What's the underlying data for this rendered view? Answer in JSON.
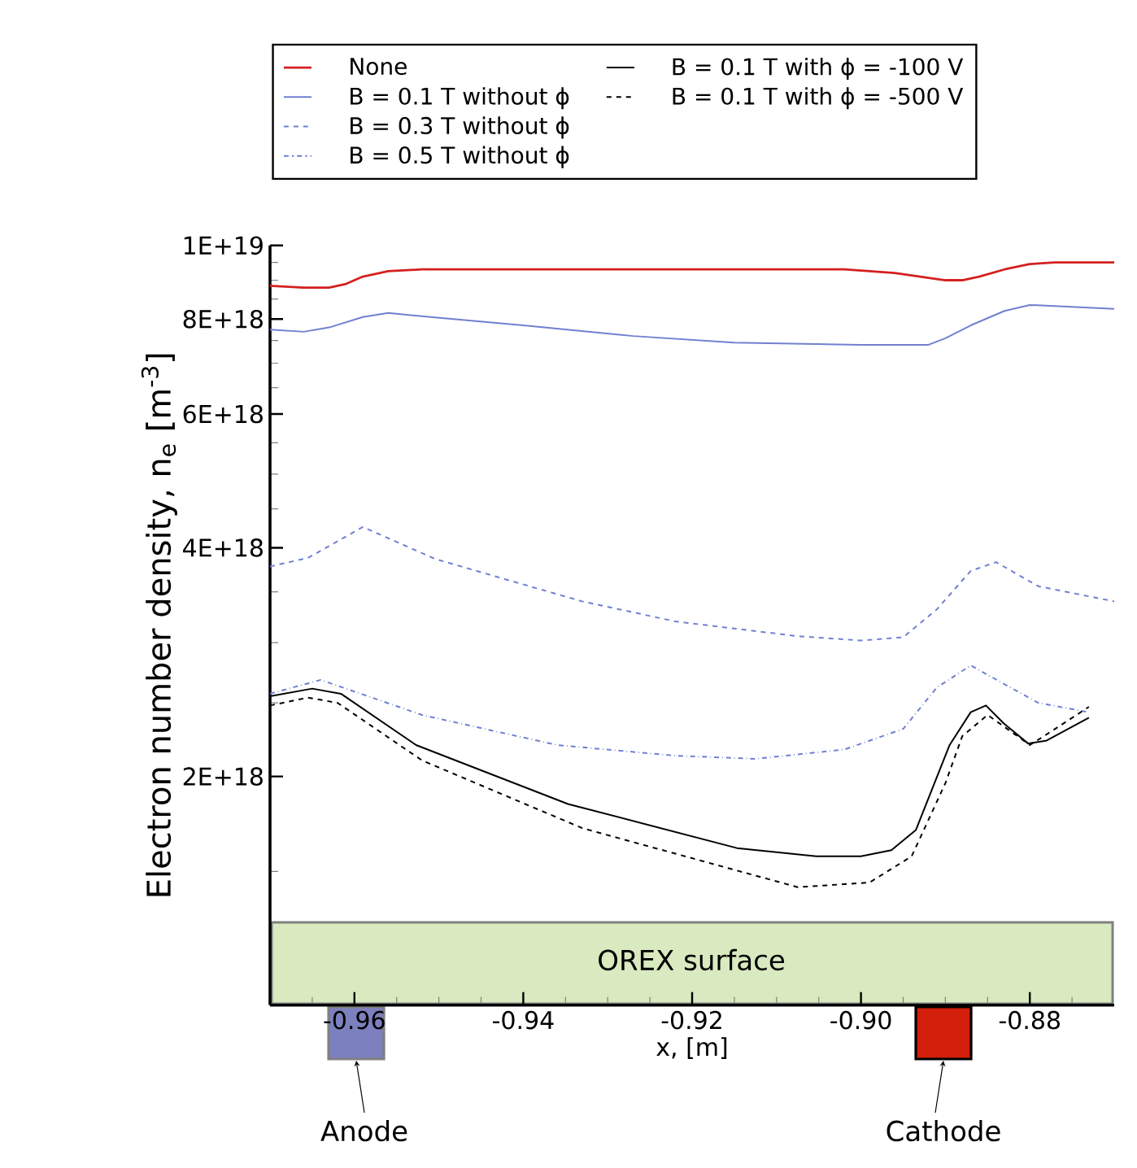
{
  "chart_data": {
    "type": "line",
    "xlabel": "x, [m]",
    "ylabel": "Electron number density, n$_{e}$ [m$^{-3}$]",
    "xlim": [
      -0.97,
      -0.87
    ],
    "xticks": [
      {
        "value": -0.965,
        "label": null
      },
      -0.96,
      {
        "value": -0.955,
        "label": null
      },
      {
        "value": -0.95,
        "label": null
      },
      {
        "value": -0.945,
        "label": null
      },
      -0.94,
      {
        "value": -0.935,
        "label": null
      },
      {
        "value": -0.93,
        "label": null
      },
      {
        "value": -0.925,
        "label": null
      },
      -0.92,
      {
        "value": -0.915,
        "label": null
      },
      {
        "value": -0.91,
        "label": null
      },
      {
        "value": -0.905,
        "label": null
      },
      {
        "value": -0.9,
        "label": "-0.90"
      },
      {
        "value": -0.895,
        "label": null
      },
      {
        "value": -0.89,
        "label": null
      },
      {
        "value": -0.885,
        "label": null
      },
      -0.88,
      {
        "value": -0.875,
        "label": null
      }
    ],
    "ylim": [
      1e+18,
      1e+19
    ],
    "log": "y",
    "yticks": [
      {
        "value": 1.5e+18,
        "label": null
      },
      {
        "value": 2e+18,
        "label": "2E+18"
      },
      {
        "value": 2.5e+18,
        "label": null
      },
      {
        "value": 3e+18,
        "label": null
      },
      {
        "value": 3.5e+18,
        "label": null
      },
      {
        "value": 4e+18,
        "label": "4E+18"
      },
      {
        "value": 4.5e+18,
        "label": null
      },
      {
        "value": 5e+18,
        "label": null
      },
      {
        "value": 5.5e+18,
        "label": null
      },
      {
        "value": 6e+18,
        "label": "6E+18"
      },
      {
        "value": 6.5e+18,
        "label": null
      },
      {
        "value": 7e+18,
        "label": null
      },
      {
        "value": 7.5e+18,
        "label": null
      },
      {
        "value": 8e+18,
        "label": "8E+18"
      },
      {
        "value": 8.5e+18,
        "label": null
      },
      {
        "value": 9e+18,
        "label": null
      },
      {
        "value": 9.5e+18,
        "label": null
      },
      {
        "value": 1e+19,
        "label": "1E+19"
      }
    ],
    "grid": false,
    "legend": "top",
    "marker": "none",
    "annotations": [
      "OREX surface",
      "Anode",
      "Cathode"
    ],
    "series": [
      {
        "name": "None",
        "color": "#d42020",
        "line_style": "solid",
        "x": [
          -0.97,
          -0.966,
          -0.963,
          -0.961,
          -0.959,
          -0.956,
          -0.952,
          -0.943,
          -0.902,
          -0.896,
          -0.893,
          -0.89,
          -0.888,
          -0.886,
          -0.883,
          -0.88,
          -0.877,
          -0.87
        ],
        "values": [
          8.85e+18,
          8.8e+18,
          8.8e+18,
          8.9e+18,
          9.1e+18,
          9.25e+18,
          9.3e+18,
          9.3e+18,
          9.3e+18,
          9.2e+18,
          9.1e+18,
          9e+18,
          9e+18,
          9.1e+18,
          9.3e+18,
          9.45e+18,
          9.5e+18,
          9.5e+18
        ]
      },
      {
        "name": "B = 0.1 T without ϕ",
        "color": "#7080d0",
        "line_style": "solid",
        "x": [
          -0.97,
          -0.966,
          -0.963,
          -0.959,
          -0.956,
          -0.951,
          -0.94,
          -0.927,
          -0.915,
          -0.9,
          -0.892,
          -0.89,
          -0.887,
          -0.883,
          -0.88,
          -0.87
        ],
        "values": [
          7.75e+18,
          7.7e+18,
          7.8e+18,
          8.05e+18,
          8.15e+18,
          8.05e+18,
          7.85e+18,
          7.6e+18,
          7.45e+18,
          7.4e+18,
          7.4e+18,
          7.55e+18,
          7.85e+18,
          8.2e+18,
          8.35e+18,
          8.25e+18
        ]
      },
      {
        "name": "B = 0.3 T without ϕ",
        "color": "#7080d0",
        "line_style": "dashed",
        "x": [
          -0.97,
          -0.9655,
          -0.959,
          -0.9505,
          -0.943,
          -0.933,
          -0.922,
          -0.9075,
          -0.9,
          -0.895,
          -0.891,
          -0.887,
          -0.884,
          -0.879,
          -0.87
        ],
        "values": [
          3.78e+18,
          3.88e+18,
          4.26e+18,
          3.87e+18,
          3.66e+18,
          3.4e+18,
          3.2e+18,
          3.06e+18,
          3.02e+18,
          3.05e+18,
          3.32e+18,
          3.73e+18,
          3.83e+18,
          3.56e+18,
          3.4e+18
        ]
      },
      {
        "name": "B = 0.5 T without ϕ",
        "color": "#7080d0",
        "line_style": "dashdot",
        "x": [
          -0.97,
          -0.964,
          -0.952,
          -0.936,
          -0.922,
          -0.9125,
          -0.902,
          -0.895,
          -0.891,
          -0.887,
          -0.879,
          -0.873
        ],
        "values": [
          2.57e+18,
          2.68e+18,
          2.41e+18,
          2.2e+18,
          2.13e+18,
          2.11e+18,
          2.17e+18,
          2.31e+18,
          2.62e+18,
          2.8e+18,
          2.5e+18,
          2.43e+18
        ]
      },
      {
        "name": "B = 0.1 T with ϕ = -100 V",
        "color": "#000000",
        "line_style": "solid",
        "x": [
          -0.97,
          -0.965,
          -0.9616,
          -0.9527,
          -0.9347,
          -0.9147,
          -0.9053,
          -0.9,
          -0.8964,
          -0.8935,
          -0.8895,
          -0.887,
          -0.8852,
          -0.8831,
          -0.8802,
          -0.878,
          -0.873
        ],
        "values": [
          2.55e+18,
          2.61e+18,
          2.57e+18,
          2.2e+18,
          1.84e+18,
          1.61e+18,
          1.57e+18,
          1.57e+18,
          1.6e+18,
          1.7e+18,
          2.2e+18,
          2.43e+18,
          2.48e+18,
          2.35e+18,
          2.21e+18,
          2.23e+18,
          2.39e+18
        ]
      },
      {
        "name": "B = 0.1 T with ϕ = -500 V",
        "color": "#000000",
        "line_style": "dashed",
        "x": [
          -0.97,
          -0.9655,
          -0.962,
          -0.952,
          -0.933,
          -0.9075,
          -0.899,
          -0.894,
          -0.89,
          -0.888,
          -0.885,
          -0.88,
          -0.877,
          -0.873
        ],
        "values": [
          2.48e+18,
          2.54e+18,
          2.5e+18,
          2.1e+18,
          1.71e+18,
          1.43e+18,
          1.45e+18,
          1.57e+18,
          1.96e+18,
          2.26e+18,
          2.41e+18,
          2.2e+18,
          2.31e+18,
          2.47e+18
        ]
      }
    ]
  }
}
